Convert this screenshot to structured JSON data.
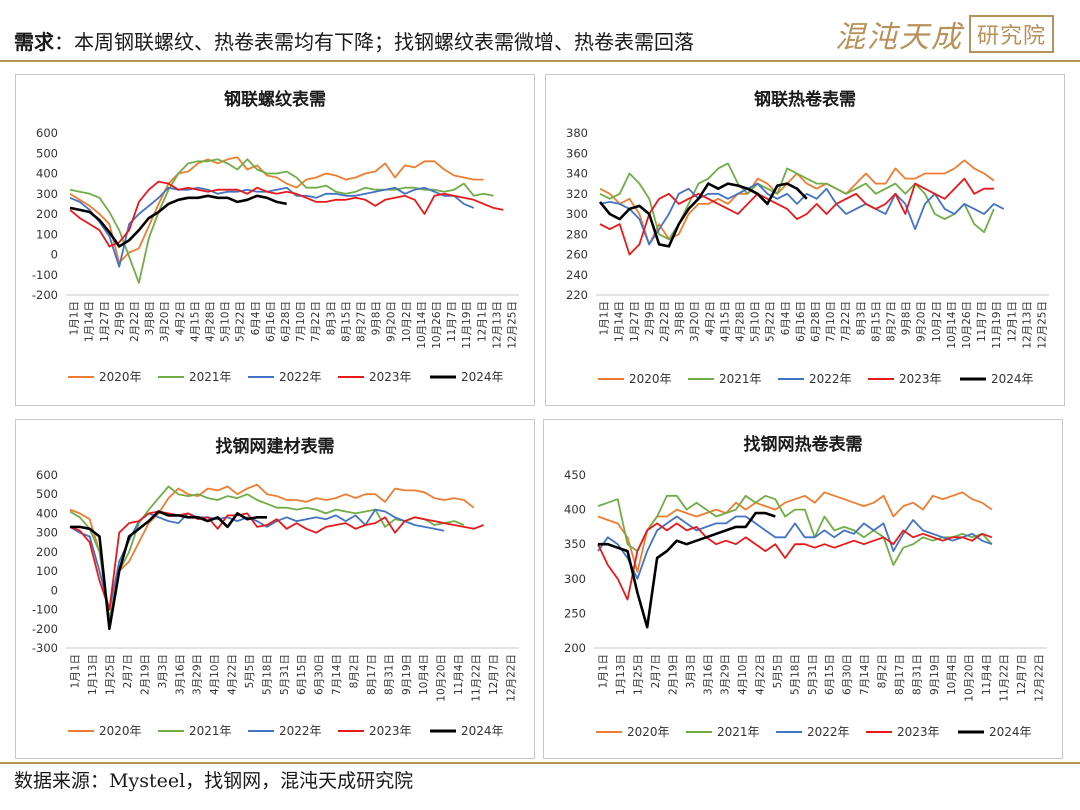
{
  "header": {
    "label": "需求",
    "colon": "：",
    "text": "本周钢联螺纹、热卷表需均有下降；找钢螺纹表需微增、热卷表需回落"
  },
  "logo": {
    "text": "混沌天成",
    "stamp": "研究院"
  },
  "footer": {
    "source": "数据来源：Mysteel，找钢网，混沌天成研究院"
  },
  "series_colors": {
    "2020年": "#ed7d31",
    "2021年": "#70ad47",
    "2022年": "#4472c4",
    "2023年": "#e8191a",
    "2024年": "#000000"
  },
  "chart_data": [
    {
      "type": "line",
      "title": "钢联螺纹表需",
      "ylim": [
        -200,
        600
      ],
      "yticks": [
        -200,
        -100,
        0,
        100,
        200,
        300,
        400,
        500,
        600
      ],
      "xticks": [
        "1月1日",
        "1月14日",
        "1月27日",
        "2月9日",
        "2月22日",
        "3月8日",
        "3月20日",
        "4月2日",
        "4月15日",
        "4月28日",
        "5月10日",
        "5月22日",
        "6月4日",
        "6月16日",
        "6月28日",
        "7月10日",
        "7月22日",
        "8月3日",
        "8月15日",
        "8月27日",
        "9月8日",
        "9月20日",
        "10月2日",
        "10月14日",
        "10月26日",
        "11月7日",
        "11月19日",
        "12月1日",
        "12月13日",
        "12月25日"
      ],
      "legend": "bottom",
      "series": [
        {
          "name": "2020年",
          "values": [
            300,
            270,
            240,
            200,
            150,
            -40,
            10,
            30,
            140,
            250,
            350,
            400,
            410,
            450,
            470,
            450,
            470,
            480,
            420,
            440,
            390,
            380,
            350,
            330,
            370,
            380,
            400,
            390,
            370,
            380,
            400,
            410,
            450,
            380,
            440,
            430,
            460,
            460,
            420,
            390,
            380,
            370,
            370
          ]
        },
        {
          "name": "2021年",
          "values": [
            320,
            310,
            300,
            280,
            210,
            120,
            -10,
            -140,
            80,
            210,
            320,
            400,
            450,
            460,
            460,
            470,
            450,
            420,
            470,
            420,
            400,
            400,
            410,
            380,
            330,
            330,
            340,
            310,
            300,
            310,
            330,
            320,
            320,
            320,
            330,
            330,
            320,
            320,
            310,
            320,
            350,
            290,
            300,
            290
          ]
        },
        {
          "name": "2022年",
          "values": [
            280,
            260,
            220,
            160,
            90,
            -60,
            150,
            200,
            240,
            280,
            330,
            320,
            320,
            330,
            320,
            300,
            310,
            310,
            320,
            310,
            310,
            320,
            330,
            290,
            290,
            280,
            300,
            300,
            290,
            290,
            300,
            310,
            320,
            330,
            300,
            320,
            330,
            310,
            290,
            290,
            250,
            230
          ]
        },
        {
          "name": "2023年",
          "values": [
            220,
            180,
            150,
            120,
            40,
            60,
            120,
            260,
            320,
            360,
            350,
            320,
            330,
            320,
            310,
            320,
            320,
            320,
            300,
            330,
            310,
            300,
            310,
            300,
            280,
            260,
            260,
            270,
            270,
            280,
            270,
            240,
            270,
            280,
            290,
            270,
            200,
            290,
            300,
            290,
            280,
            270,
            250,
            230,
            220
          ]
        },
        {
          "name": "2024年",
          "values": [
            230,
            220,
            210,
            170,
            110,
            40,
            70,
            120,
            180,
            210,
            250,
            270,
            280,
            280,
            290,
            280,
            280,
            260,
            270,
            290,
            280,
            260,
            250
          ]
        }
      ]
    },
    {
      "type": "line",
      "title": "钢联热卷表需",
      "ylim": [
        220,
        380
      ],
      "yticks": [
        220,
        240,
        260,
        280,
        300,
        320,
        340,
        360,
        380
      ],
      "xticks": [
        "1月1日",
        "1月14日",
        "1月27日",
        "2月9日",
        "2月22日",
        "3月8日",
        "3月20日",
        "4月2日",
        "4月15日",
        "4月28日",
        "5月10日",
        "5月22日",
        "6月4日",
        "6月16日",
        "6月28日",
        "7月10日",
        "7月22日",
        "8月3日",
        "8月15日",
        "8月27日",
        "9月8日",
        "9月20日",
        "10月2日",
        "10月14日",
        "10月26日",
        "11月7日",
        "11月19日",
        "12月1日",
        "12月13日",
        "12月25日"
      ],
      "legend": "bottom",
      "series": [
        {
          "name": "2020年",
          "values": [
            325,
            320,
            310,
            315,
            300,
            270,
            290,
            275,
            280,
            300,
            310,
            310,
            315,
            310,
            320,
            320,
            335,
            330,
            320,
            330,
            340,
            330,
            325,
            330,
            325,
            320,
            330,
            340,
            330,
            330,
            345,
            335,
            335,
            340,
            340,
            340,
            345,
            353,
            345,
            340,
            333
          ]
        },
        {
          "name": "2021年",
          "values": [
            320,
            315,
            320,
            340,
            330,
            315,
            280,
            275,
            290,
            310,
            330,
            335,
            345,
            350,
            330,
            320,
            330,
            325,
            320,
            345,
            340,
            335,
            330,
            330,
            325,
            320,
            325,
            330,
            320,
            325,
            330,
            320,
            330,
            320,
            300,
            295,
            300,
            310,
            290,
            282,
            305
          ]
        },
        {
          "name": "2022年",
          "values": [
            310,
            312,
            310,
            305,
            295,
            270,
            285,
            300,
            320,
            325,
            315,
            320,
            320,
            315,
            320,
            325,
            330,
            320,
            315,
            320,
            310,
            320,
            315,
            325,
            310,
            300,
            305,
            310,
            305,
            300,
            320,
            310,
            285,
            310,
            320,
            305,
            300,
            310,
            305,
            300,
            310,
            305
          ]
        },
        {
          "name": "2023年",
          "values": [
            290,
            285,
            290,
            260,
            270,
            300,
            315,
            320,
            310,
            315,
            320,
            315,
            310,
            305,
            300,
            310,
            320,
            315,
            310,
            305,
            295,
            300,
            310,
            300,
            310,
            315,
            320,
            310,
            305,
            310,
            320,
            300,
            330,
            325,
            320,
            315,
            325,
            335,
            320,
            325,
            325
          ]
        },
        {
          "name": "2024年",
          "values": [
            312,
            300,
            295,
            305,
            308,
            300,
            270,
            268,
            290,
            305,
            315,
            330,
            325,
            330,
            328,
            325,
            320,
            310,
            328,
            330,
            325,
            315
          ]
        }
      ]
    },
    {
      "type": "line",
      "title": "找钢网建材表需",
      "ylim": [
        -300,
        600
      ],
      "yticks": [
        -300,
        -200,
        -100,
        0,
        100,
        200,
        300,
        400,
        500,
        600
      ],
      "xticks": [
        "1月1日",
        "1月13日",
        "1月25日",
        "2月7日",
        "2月19日",
        "3月3日",
        "3月16日",
        "3月29日",
        "4月10日",
        "4月22日",
        "5月5日",
        "5月18日",
        "5月31日",
        "6月15日",
        "6月30日",
        "7月14日",
        "8月2日",
        "8月17日",
        "8月31日",
        "9月19日",
        "10月4日",
        "10月20日",
        "11月4日",
        "11月22日",
        "12月7日",
        "12月22日"
      ],
      "legend": "bottom",
      "series": [
        {
          "name": "2020年",
          "values": [
            420,
            400,
            370,
            200,
            -160,
            100,
            150,
            250,
            350,
            400,
            480,
            530,
            500,
            490,
            530,
            520,
            540,
            500,
            530,
            550,
            500,
            490,
            470,
            470,
            460,
            480,
            470,
            480,
            500,
            480,
            500,
            500,
            460,
            530,
            520,
            520,
            510,
            480,
            470,
            480,
            470,
            430
          ]
        },
        {
          "name": "2021年",
          "values": [
            410,
            380,
            320,
            200,
            -150,
            100,
            200,
            350,
            420,
            480,
            540,
            500,
            490,
            500,
            480,
            470,
            490,
            480,
            500,
            470,
            450,
            430,
            430,
            420,
            430,
            420,
            400,
            420,
            410,
            400,
            410,
            420,
            330,
            370,
            360,
            380,
            370,
            340,
            350,
            360,
            340
          ]
        },
        {
          "name": "2022年",
          "values": [
            330,
            300,
            280,
            100,
            -100,
            150,
            260,
            360,
            400,
            380,
            360,
            350,
            400,
            380,
            380,
            370,
            380,
            360,
            380,
            360,
            330,
            360,
            380,
            360,
            370,
            380,
            370,
            390,
            360,
            390,
            340,
            420,
            410,
            380,
            360,
            340,
            330,
            320,
            310
          ]
        },
        {
          "name": "2023年",
          "values": [
            330,
            310,
            250,
            50,
            -100,
            300,
            350,
            360,
            400,
            410,
            400,
            390,
            400,
            370,
            380,
            320,
            390,
            390,
            400,
            330,
            340,
            370,
            320,
            350,
            320,
            300,
            330,
            340,
            350,
            320,
            340,
            350,
            380,
            300,
            360,
            380,
            370,
            360,
            350,
            340,
            330,
            320,
            340
          ]
        },
        {
          "name": "2024年",
          "values": [
            330,
            330,
            320,
            280,
            -200,
            100,
            280,
            320,
            360,
            410,
            390,
            390,
            380,
            380,
            360,
            380,
            330,
            400,
            370,
            380,
            380
          ]
        }
      ]
    },
    {
      "type": "line",
      "title": "找钢网热卷表需",
      "ylim": [
        200,
        450
      ],
      "yticks": [
        200,
        250,
        300,
        350,
        400,
        450
      ],
      "xticks": [
        "1月1日",
        "1月13日",
        "1月25日",
        "2月7日",
        "2月19日",
        "3月3日",
        "3月16日",
        "3月29日",
        "4月10日",
        "4月22日",
        "5月5日",
        "5月18日",
        "5月31日",
        "6月15日",
        "6月30日",
        "7月14日",
        "8月2日",
        "8月17日",
        "8月31日",
        "9月19日",
        "10月4日",
        "10月20日",
        "11月4日",
        "11月22日",
        "12月7日",
        "12月22日"
      ],
      "legend": "bottom",
      "series": [
        {
          "name": "2020年",
          "values": [
            390,
            385,
            380,
            360,
            310,
            370,
            390,
            390,
            400,
            395,
            390,
            395,
            400,
            395,
            410,
            400,
            410,
            405,
            400,
            410,
            415,
            420,
            410,
            425,
            420,
            415,
            410,
            405,
            410,
            420,
            390,
            405,
            410,
            400,
            420,
            415,
            420,
            425,
            415,
            410,
            400
          ]
        },
        {
          "name": "2021年",
          "values": [
            405,
            410,
            415,
            350,
            340,
            370,
            390,
            420,
            420,
            400,
            410,
            400,
            390,
            395,
            400,
            420,
            410,
            420,
            415,
            390,
            400,
            400,
            360,
            390,
            370,
            375,
            370,
            360,
            370,
            360,
            320,
            345,
            350,
            360,
            355,
            360,
            360,
            365,
            360,
            365,
            350
          ]
        },
        {
          "name": "2022年",
          "values": [
            340,
            360,
            350,
            330,
            300,
            340,
            370,
            380,
            390,
            380,
            370,
            375,
            380,
            380,
            390,
            390,
            380,
            370,
            360,
            360,
            380,
            360,
            360,
            370,
            360,
            370,
            365,
            380,
            370,
            380,
            340,
            365,
            385,
            370,
            365,
            360,
            355,
            360,
            365,
            355,
            350
          ]
        },
        {
          "name": "2023年",
          "values": [
            350,
            320,
            300,
            270,
            340,
            370,
            380,
            370,
            380,
            370,
            375,
            360,
            350,
            355,
            350,
            360,
            350,
            340,
            350,
            330,
            350,
            350,
            345,
            350,
            345,
            350,
            355,
            350,
            355,
            360,
            350,
            370,
            360,
            365,
            360,
            355,
            360,
            360,
            355,
            365,
            360
          ]
        },
        {
          "name": "2024年",
          "values": [
            350,
            350,
            345,
            340,
            280,
            230,
            330,
            340,
            355,
            350,
            355,
            360,
            365,
            370,
            375,
            375,
            395,
            395,
            390
          ]
        }
      ]
    }
  ]
}
